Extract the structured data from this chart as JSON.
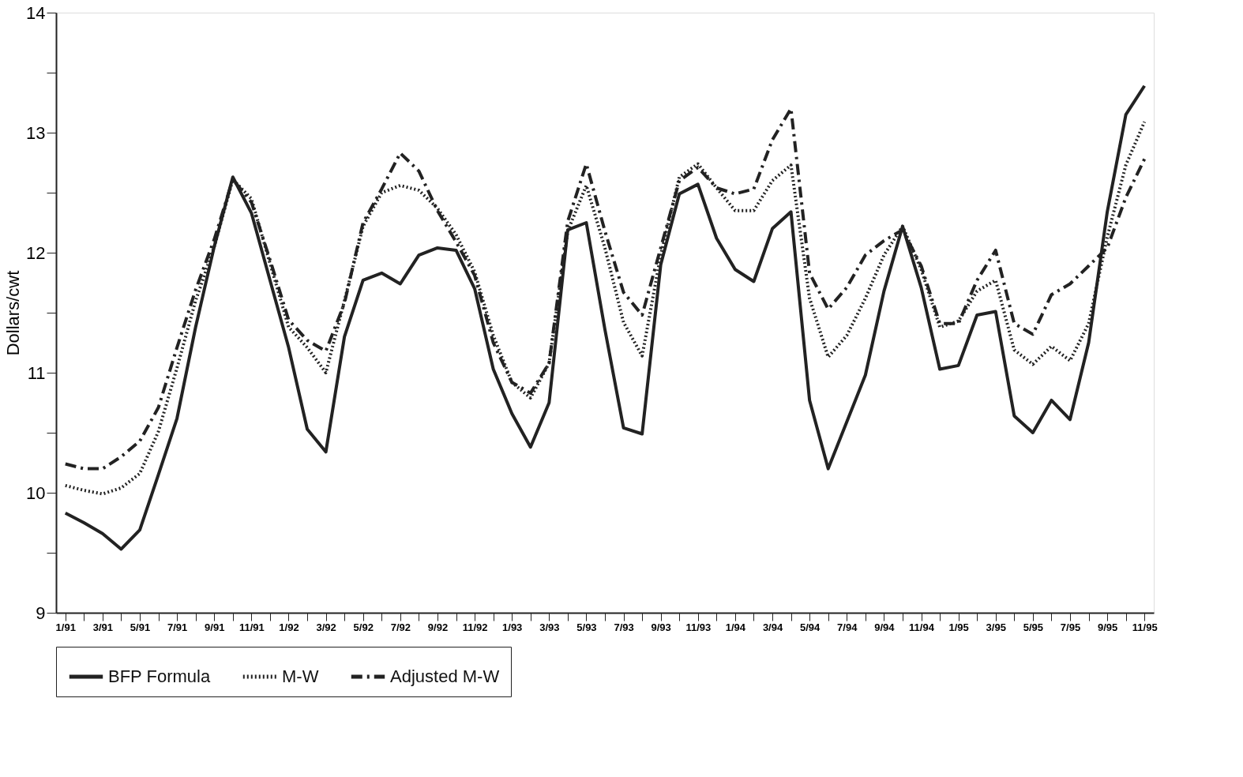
{
  "chart_data": {
    "type": "line",
    "ylabel": "Dollars/cwt",
    "categories": [
      "1/91",
      null,
      "3/91",
      null,
      "5/91",
      null,
      "7/91",
      null,
      "9/91",
      null,
      "11/91",
      null,
      "1/92",
      null,
      "3/92",
      null,
      "5/92",
      null,
      "7/92",
      null,
      "9/92",
      null,
      "11/92",
      null,
      "1/93",
      null,
      "3/93",
      null,
      "5/93",
      null,
      "7/93",
      null,
      "9/93",
      null,
      "11/93",
      null,
      "1/94",
      null,
      "3/94",
      null,
      "5/94",
      null,
      "7/94",
      null,
      "9/94",
      null,
      "11/94",
      null,
      "1/95",
      null,
      "3/95",
      null,
      "5/95",
      null,
      "7/95",
      null,
      "9/95",
      null,
      "11/95"
    ],
    "series": [
      {
        "name": "BFP Formula",
        "color": "#222222",
        "line_style": "solid",
        "values": [
          9.83,
          9.75,
          9.66,
          9.53,
          9.69,
          10.15,
          10.62,
          11.38,
          12.05,
          12.63,
          12.33,
          11.77,
          11.21,
          10.53,
          10.34,
          11.3,
          11.77,
          11.83,
          11.74,
          11.98,
          12.04,
          12.02,
          11.7,
          11.03,
          10.66,
          10.38,
          10.75,
          12.19,
          12.25,
          11.36,
          10.54,
          10.49,
          11.9,
          12.49,
          12.57,
          12.12,
          11.86,
          11.76,
          12.2,
          12.34,
          10.77,
          10.2,
          10.59,
          10.98,
          11.68,
          12.22,
          11.71,
          11.03,
          11.06,
          11.48,
          11.51,
          10.64,
          10.5,
          10.77,
          10.61,
          11.25,
          12.34,
          13.15,
          13.39
        ]
      },
      {
        "name": "M-W",
        "color": "#222222",
        "line_style": "dotted",
        "values": [
          10.06,
          10.02,
          9.99,
          10.04,
          10.16,
          10.51,
          11.04,
          11.6,
          12.05,
          12.61,
          12.45,
          11.91,
          11.38,
          11.21,
          11.0,
          11.6,
          12.22,
          12.5,
          12.56,
          12.52,
          12.37,
          12.15,
          11.84,
          11.31,
          10.92,
          10.79,
          11.08,
          12.18,
          12.56,
          12.04,
          11.42,
          11.14,
          11.98,
          12.63,
          12.74,
          12.54,
          12.35,
          12.35,
          12.6,
          12.73,
          11.62,
          11.13,
          11.31,
          11.62,
          11.98,
          12.22,
          11.86,
          11.38,
          11.43,
          11.68,
          11.77,
          11.19,
          11.07,
          11.22,
          11.1,
          11.41,
          12.13,
          12.73,
          13.09
        ]
      },
      {
        "name": "Adjusted M-W",
        "color": "#222222",
        "line_style": "dashed",
        "values": [
          10.24,
          10.2,
          10.2,
          10.3,
          10.43,
          10.71,
          11.21,
          11.69,
          12.11,
          12.61,
          12.42,
          11.94,
          11.44,
          11.27,
          11.18,
          11.58,
          12.25,
          12.53,
          12.83,
          12.68,
          12.35,
          12.09,
          11.81,
          11.25,
          10.92,
          10.83,
          11.08,
          12.26,
          12.74,
          12.18,
          11.67,
          11.48,
          12.04,
          12.6,
          12.71,
          12.54,
          12.49,
          12.53,
          12.94,
          13.2,
          11.83,
          11.53,
          11.71,
          11.98,
          12.1,
          12.19,
          11.89,
          11.41,
          11.41,
          11.77,
          12.02,
          11.41,
          11.32,
          11.65,
          11.74,
          11.89,
          12.04,
          12.46,
          12.78
        ]
      }
    ],
    "ylim": [
      9,
      14
    ],
    "yticks": [
      9,
      {
        "value": 9.5,
        "label": null
      },
      10,
      {
        "value": 10.5,
        "label": null
      },
      11,
      {
        "value": 11.5,
        "label": null
      },
      12,
      {
        "value": 12.5,
        "label": null
      },
      13,
      {
        "value": 13.5,
        "label": null
      },
      14
    ],
    "grid": false,
    "legend": "bottom",
    "marker": "none"
  }
}
